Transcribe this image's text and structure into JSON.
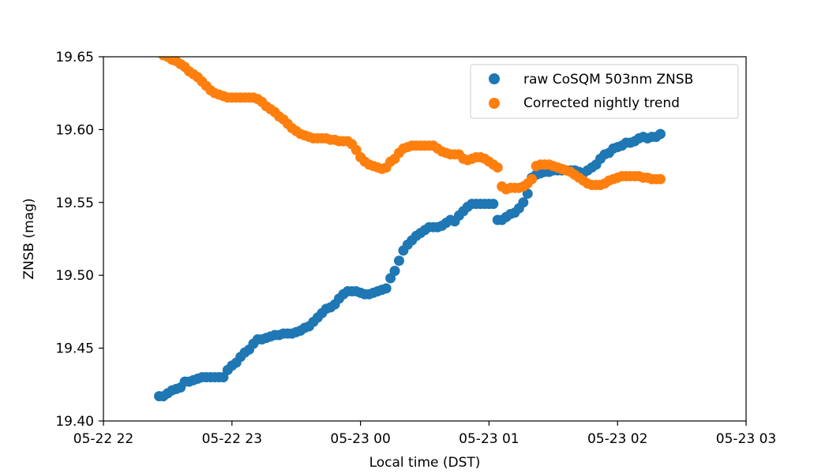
{
  "chart_data": {
    "type": "scatter",
    "xlabel": "Local time (DST)",
    "ylabel": "ZNSB (mag)",
    "xlim": [
      "2021-05-22T22:00",
      "2021-05-23T03:00"
    ],
    "ylim": [
      19.4,
      19.65
    ],
    "x_ticks": [
      {
        "time": "2021-05-22T22:00",
        "label": "05-22 22"
      },
      {
        "time": "2021-05-22T23:00",
        "label": "05-22 23"
      },
      {
        "time": "2021-05-23T00:00",
        "label": "05-23 00"
      },
      {
        "time": "2021-05-23T01:00",
        "label": "05-23 01"
      },
      {
        "time": "2021-05-23T02:00",
        "label": "05-23 02"
      },
      {
        "time": "2021-05-23T03:00",
        "label": "05-23 03"
      }
    ],
    "y_ticks": [
      {
        "value": 19.4,
        "label": "19.40"
      },
      {
        "value": 19.45,
        "label": "19.45"
      },
      {
        "value": 19.5,
        "label": "19.50"
      },
      {
        "value": 19.55,
        "label": "19.55"
      },
      {
        "value": 19.6,
        "label": "19.60"
      },
      {
        "value": 19.65,
        "label": "19.65"
      }
    ],
    "grid": false,
    "legend_position": "upper-right",
    "series": [
      {
        "name": "raw CoSQM 503nm ZNSB",
        "color": "#1f77b4",
        "points": [
          [
            "2021-05-22T22:26",
            19.417
          ],
          [
            "2021-05-22T22:28",
            19.417
          ],
          [
            "2021-05-22T22:30",
            19.419
          ],
          [
            "2021-05-22T22:32",
            19.421
          ],
          [
            "2021-05-22T22:34",
            19.422
          ],
          [
            "2021-05-22T22:36",
            19.423
          ],
          [
            "2021-05-22T22:38",
            19.427
          ],
          [
            "2021-05-22T22:40",
            19.427
          ],
          [
            "2021-05-22T22:42",
            19.428
          ],
          [
            "2021-05-22T22:44",
            19.429
          ],
          [
            "2021-05-22T22:46",
            19.43
          ],
          [
            "2021-05-22T22:48",
            19.43
          ],
          [
            "2021-05-22T22:50",
            19.43
          ],
          [
            "2021-05-22T22:52",
            19.43
          ],
          [
            "2021-05-22T22:54",
            19.43
          ],
          [
            "2021-05-22T22:56",
            19.43
          ],
          [
            "2021-05-22T22:58",
            19.435
          ],
          [
            "2021-05-22T23:00",
            19.438
          ],
          [
            "2021-05-22T23:02",
            19.44
          ],
          [
            "2021-05-22T23:04",
            19.444
          ],
          [
            "2021-05-22T23:06",
            19.447
          ],
          [
            "2021-05-22T23:08",
            19.449
          ],
          [
            "2021-05-22T23:10",
            19.453
          ],
          [
            "2021-05-22T23:12",
            19.456
          ],
          [
            "2021-05-22T23:14",
            19.456
          ],
          [
            "2021-05-22T23:16",
            19.457
          ],
          [
            "2021-05-22T23:18",
            19.458
          ],
          [
            "2021-05-22T23:20",
            19.459
          ],
          [
            "2021-05-22T23:22",
            19.459
          ],
          [
            "2021-05-22T23:24",
            19.46
          ],
          [
            "2021-05-22T23:26",
            19.46
          ],
          [
            "2021-05-22T23:28",
            19.46
          ],
          [
            "2021-05-22T23:30",
            19.461
          ],
          [
            "2021-05-22T23:32",
            19.462
          ],
          [
            "2021-05-22T23:34",
            19.464
          ],
          [
            "2021-05-22T23:36",
            19.465
          ],
          [
            "2021-05-22T23:38",
            19.468
          ],
          [
            "2021-05-22T23:40",
            19.471
          ],
          [
            "2021-05-22T23:42",
            19.474
          ],
          [
            "2021-05-22T23:44",
            19.477
          ],
          [
            "2021-05-22T23:46",
            19.478
          ],
          [
            "2021-05-22T23:48",
            19.48
          ],
          [
            "2021-05-22T23:50",
            19.484
          ],
          [
            "2021-05-22T23:52",
            19.487
          ],
          [
            "2021-05-22T23:54",
            19.489
          ],
          [
            "2021-05-22T23:56",
            19.489
          ],
          [
            "2021-05-22T23:58",
            19.489
          ],
          [
            "2021-05-23T00:00",
            19.488
          ],
          [
            "2021-05-23T00:02",
            19.487
          ],
          [
            "2021-05-23T00:04",
            19.487
          ],
          [
            "2021-05-23T00:06",
            19.488
          ],
          [
            "2021-05-23T00:08",
            19.489
          ],
          [
            "2021-05-23T00:10",
            19.49
          ],
          [
            "2021-05-23T00:12",
            19.491
          ],
          [
            "2021-05-23T00:14",
            19.498
          ],
          [
            "2021-05-23T00:16",
            19.503
          ],
          [
            "2021-05-23T00:18",
            19.51
          ],
          [
            "2021-05-23T00:20",
            19.517
          ],
          [
            "2021-05-23T00:22",
            19.521
          ],
          [
            "2021-05-23T00:24",
            19.524
          ],
          [
            "2021-05-23T00:26",
            19.527
          ],
          [
            "2021-05-23T00:28",
            19.529
          ],
          [
            "2021-05-23T00:30",
            19.531
          ],
          [
            "2021-05-23T00:32",
            19.533
          ],
          [
            "2021-05-23T00:34",
            19.533
          ],
          [
            "2021-05-23T00:36",
            19.533
          ],
          [
            "2021-05-23T00:38",
            19.534
          ],
          [
            "2021-05-23T00:40",
            19.536
          ],
          [
            "2021-05-23T00:42",
            19.538
          ],
          [
            "2021-05-23T00:44",
            19.537
          ],
          [
            "2021-05-23T00:46",
            19.541
          ],
          [
            "2021-05-23T00:48",
            19.544
          ],
          [
            "2021-05-23T00:50",
            19.547
          ],
          [
            "2021-05-23T00:52",
            19.549
          ],
          [
            "2021-05-23T00:54",
            19.549
          ],
          [
            "2021-05-23T00:56",
            19.549
          ],
          [
            "2021-05-23T00:58",
            19.549
          ],
          [
            "2021-05-23T01:00",
            19.549
          ],
          [
            "2021-05-23T01:02",
            19.549
          ],
          [
            "2021-05-23T01:04",
            19.538
          ],
          [
            "2021-05-23T01:06",
            19.538
          ],
          [
            "2021-05-23T01:08",
            19.54
          ],
          [
            "2021-05-23T01:10",
            19.542
          ],
          [
            "2021-05-23T01:12",
            19.543
          ],
          [
            "2021-05-23T01:14",
            19.546
          ],
          [
            "2021-05-23T01:16",
            19.55
          ],
          [
            "2021-05-23T01:18",
            19.556
          ],
          [
            "2021-05-23T01:20",
            19.567
          ],
          [
            "2021-05-23T01:22",
            19.569
          ],
          [
            "2021-05-23T01:24",
            19.57
          ],
          [
            "2021-05-23T01:26",
            19.571
          ],
          [
            "2021-05-23T01:28",
            19.571
          ],
          [
            "2021-05-23T01:30",
            19.572
          ],
          [
            "2021-05-23T01:32",
            19.572
          ],
          [
            "2021-05-23T01:34",
            19.572
          ],
          [
            "2021-05-23T01:36",
            19.572
          ],
          [
            "2021-05-23T01:38",
            19.572
          ],
          [
            "2021-05-23T01:40",
            19.572
          ],
          [
            "2021-05-23T01:42",
            19.571
          ],
          [
            "2021-05-23T01:44",
            19.57
          ],
          [
            "2021-05-23T01:46",
            19.572
          ],
          [
            "2021-05-23T01:48",
            19.574
          ],
          [
            "2021-05-23T01:50",
            19.576
          ],
          [
            "2021-05-23T01:52",
            19.58
          ],
          [
            "2021-05-23T01:54",
            19.583
          ],
          [
            "2021-05-23T01:56",
            19.584
          ],
          [
            "2021-05-23T01:58",
            19.587
          ],
          [
            "2021-05-23T02:00",
            19.588
          ],
          [
            "2021-05-23T02:02",
            19.589
          ],
          [
            "2021-05-23T02:04",
            19.591
          ],
          [
            "2021-05-23T02:06",
            19.591
          ],
          [
            "2021-05-23T02:08",
            19.592
          ],
          [
            "2021-05-23T02:10",
            19.594
          ],
          [
            "2021-05-23T02:12",
            19.595
          ],
          [
            "2021-05-23T02:14",
            19.594
          ],
          [
            "2021-05-23T02:16",
            19.595
          ],
          [
            "2021-05-23T02:18",
            19.595
          ],
          [
            "2021-05-23T02:20",
            19.597
          ]
        ]
      },
      {
        "name": "Corrected nightly trend",
        "color": "#ff7f0e",
        "points": [
          [
            "2021-05-22T22:26",
            19.653
          ],
          [
            "2021-05-22T22:28",
            19.651
          ],
          [
            "2021-05-22T22:30",
            19.65
          ],
          [
            "2021-05-22T22:32",
            19.648
          ],
          [
            "2021-05-22T22:34",
            19.647
          ],
          [
            "2021-05-22T22:36",
            19.645
          ],
          [
            "2021-05-22T22:38",
            19.643
          ],
          [
            "2021-05-22T22:40",
            19.64
          ],
          [
            "2021-05-22T22:42",
            19.638
          ],
          [
            "2021-05-22T22:44",
            19.636
          ],
          [
            "2021-05-22T22:46",
            19.633
          ],
          [
            "2021-05-22T22:48",
            19.63
          ],
          [
            "2021-05-22T22:50",
            19.627
          ],
          [
            "2021-05-22T22:52",
            19.625
          ],
          [
            "2021-05-22T22:54",
            19.624
          ],
          [
            "2021-05-22T22:56",
            19.623
          ],
          [
            "2021-05-22T22:58",
            19.622
          ],
          [
            "2021-05-22T23:00",
            19.622
          ],
          [
            "2021-05-22T23:02",
            19.622
          ],
          [
            "2021-05-22T23:04",
            19.622
          ],
          [
            "2021-05-22T23:06",
            19.622
          ],
          [
            "2021-05-22T23:08",
            19.622
          ],
          [
            "2021-05-22T23:10",
            19.622
          ],
          [
            "2021-05-22T23:12",
            19.621
          ],
          [
            "2021-05-22T23:14",
            19.619
          ],
          [
            "2021-05-22T23:16",
            19.616
          ],
          [
            "2021-05-22T23:18",
            19.614
          ],
          [
            "2021-05-22T23:20",
            19.612
          ],
          [
            "2021-05-22T23:22",
            19.609
          ],
          [
            "2021-05-22T23:24",
            19.607
          ],
          [
            "2021-05-22T23:26",
            19.604
          ],
          [
            "2021-05-22T23:28",
            19.601
          ],
          [
            "2021-05-22T23:30",
            19.599
          ],
          [
            "2021-05-22T23:32",
            19.597
          ],
          [
            "2021-05-22T23:34",
            19.596
          ],
          [
            "2021-05-22T23:36",
            19.595
          ],
          [
            "2021-05-22T23:38",
            19.594
          ],
          [
            "2021-05-22T23:40",
            19.594
          ],
          [
            "2021-05-22T23:42",
            19.594
          ],
          [
            "2021-05-22T23:44",
            19.594
          ],
          [
            "2021-05-22T23:46",
            19.593
          ],
          [
            "2021-05-22T23:48",
            19.593
          ],
          [
            "2021-05-22T23:50",
            19.592
          ],
          [
            "2021-05-22T23:52",
            19.592
          ],
          [
            "2021-05-22T23:54",
            19.592
          ],
          [
            "2021-05-22T23:56",
            19.59
          ],
          [
            "2021-05-22T23:58",
            19.586
          ],
          [
            "2021-05-23T00:00",
            19.581
          ],
          [
            "2021-05-23T00:02",
            19.578
          ],
          [
            "2021-05-23T00:04",
            19.576
          ],
          [
            "2021-05-23T00:06",
            19.575
          ],
          [
            "2021-05-23T00:08",
            19.574
          ],
          [
            "2021-05-23T00:10",
            19.573
          ],
          [
            "2021-05-23T00:12",
            19.574
          ],
          [
            "2021-05-23T00:14",
            19.578
          ],
          [
            "2021-05-23T00:16",
            19.58
          ],
          [
            "2021-05-23T00:18",
            19.584
          ],
          [
            "2021-05-23T00:20",
            19.587
          ],
          [
            "2021-05-23T00:22",
            19.588
          ],
          [
            "2021-05-23T00:24",
            19.589
          ],
          [
            "2021-05-23T00:26",
            19.589
          ],
          [
            "2021-05-23T00:28",
            19.589
          ],
          [
            "2021-05-23T00:30",
            19.589
          ],
          [
            "2021-05-23T00:32",
            19.589
          ],
          [
            "2021-05-23T00:34",
            19.589
          ],
          [
            "2021-05-23T00:36",
            19.587
          ],
          [
            "2021-05-23T00:38",
            19.585
          ],
          [
            "2021-05-23T00:40",
            19.584
          ],
          [
            "2021-05-23T00:42",
            19.583
          ],
          [
            "2021-05-23T00:44",
            19.583
          ],
          [
            "2021-05-23T00:46",
            19.583
          ],
          [
            "2021-05-23T00:48",
            19.58
          ],
          [
            "2021-05-23T00:50",
            19.579
          ],
          [
            "2021-05-23T00:52",
            19.58
          ],
          [
            "2021-05-23T00:54",
            19.581
          ],
          [
            "2021-05-23T00:56",
            19.581
          ],
          [
            "2021-05-23T00:58",
            19.58
          ],
          [
            "2021-05-23T01:00",
            19.578
          ],
          [
            "2021-05-23T01:02",
            19.576
          ],
          [
            "2021-05-23T01:04",
            19.574
          ],
          [
            "2021-05-23T01:06",
            19.561
          ],
          [
            "2021-05-23T01:08",
            19.559
          ],
          [
            "2021-05-23T01:10",
            19.56
          ],
          [
            "2021-05-23T01:12",
            19.56
          ],
          [
            "2021-05-23T01:14",
            19.56
          ],
          [
            "2021-05-23T01:16",
            19.561
          ],
          [
            "2021-05-23T01:18",
            19.563
          ],
          [
            "2021-05-23T01:20",
            19.566
          ],
          [
            "2021-05-23T01:22",
            19.575
          ],
          [
            "2021-05-23T01:24",
            19.576
          ],
          [
            "2021-05-23T01:26",
            19.576
          ],
          [
            "2021-05-23T01:28",
            19.576
          ],
          [
            "2021-05-23T01:30",
            19.575
          ],
          [
            "2021-05-23T01:32",
            19.574
          ],
          [
            "2021-05-23T01:34",
            19.573
          ],
          [
            "2021-05-23T01:36",
            19.572
          ],
          [
            "2021-05-23T01:38",
            19.571
          ],
          [
            "2021-05-23T01:40",
            19.569
          ],
          [
            "2021-05-23T01:42",
            19.567
          ],
          [
            "2021-05-23T01:44",
            19.565
          ],
          [
            "2021-05-23T01:46",
            19.563
          ],
          [
            "2021-05-23T01:48",
            19.562
          ],
          [
            "2021-05-23T01:50",
            19.562
          ],
          [
            "2021-05-23T01:52",
            19.562
          ],
          [
            "2021-05-23T01:54",
            19.563
          ],
          [
            "2021-05-23T01:56",
            19.565
          ],
          [
            "2021-05-23T01:58",
            19.566
          ],
          [
            "2021-05-23T02:00",
            19.567
          ],
          [
            "2021-05-23T02:02",
            19.568
          ],
          [
            "2021-05-23T02:04",
            19.568
          ],
          [
            "2021-05-23T02:06",
            19.568
          ],
          [
            "2021-05-23T02:08",
            19.568
          ],
          [
            "2021-05-23T02:10",
            19.568
          ],
          [
            "2021-05-23T02:12",
            19.567
          ],
          [
            "2021-05-23T02:14",
            19.567
          ],
          [
            "2021-05-23T02:16",
            19.566
          ],
          [
            "2021-05-23T02:18",
            19.566
          ],
          [
            "2021-05-23T02:20",
            19.566
          ]
        ]
      }
    ]
  }
}
